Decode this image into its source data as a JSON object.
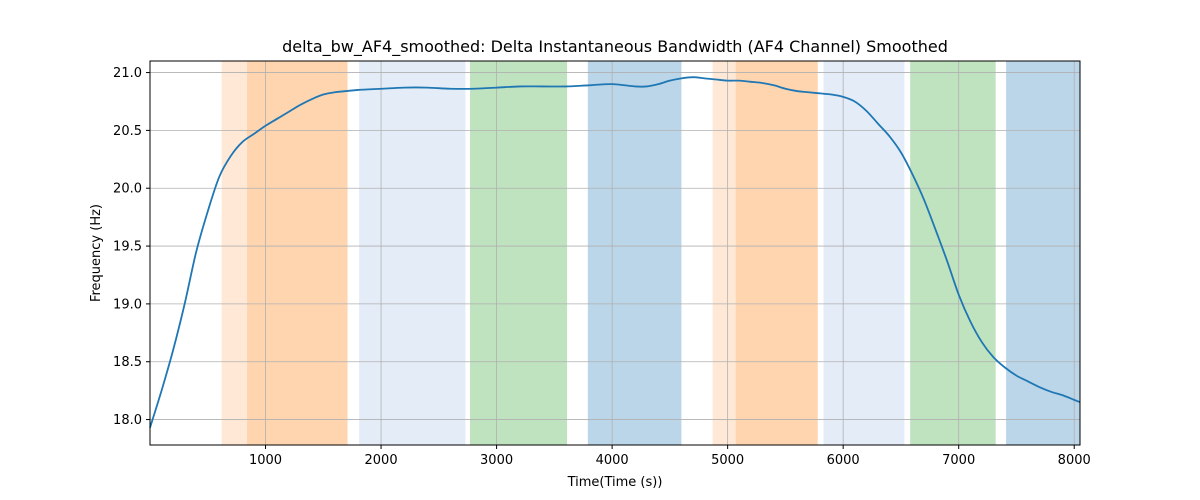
{
  "chart_data": {
    "type": "line",
    "title": "delta_bw_AF4_smoothed: Delta Instantaneous Bandwidth (AF4 Channel) Smoothed",
    "xlabel": "Time(Time (s))",
    "ylabel": "Frequency (Hz)",
    "xlim": [
      0,
      8050
    ],
    "ylim": [
      17.78,
      21.1
    ],
    "xticks": [
      1000,
      2000,
      3000,
      4000,
      5000,
      6000,
      7000,
      8000
    ],
    "yticks": [
      18.0,
      18.5,
      19.0,
      19.5,
      20.0,
      20.5,
      21.0
    ],
    "grid": true,
    "series": [
      {
        "color": "#1f77b4",
        "x": [
          0,
          100,
          200,
          300,
          400,
          500,
          600,
          700,
          800,
          900,
          1000,
          1100,
          1200,
          1300,
          1400,
          1500,
          1600,
          1700,
          1800,
          2000,
          2200,
          2400,
          2600,
          2800,
          3000,
          3200,
          3400,
          3600,
          3800,
          4000,
          4200,
          4300,
          4400,
          4500,
          4600,
          4700,
          4800,
          4900,
          5000,
          5100,
          5200,
          5300,
          5400,
          5500,
          5600,
          5700,
          5800,
          5900,
          6000,
          6100,
          6200,
          6300,
          6400,
          6500,
          6600,
          6700,
          6800,
          6900,
          7000,
          7100,
          7200,
          7300,
          7400,
          7500,
          7600,
          7700,
          7800,
          7900,
          8000,
          8050
        ],
        "y": [
          17.93,
          18.25,
          18.6,
          19.0,
          19.45,
          19.8,
          20.1,
          20.28,
          20.4,
          20.47,
          20.54,
          20.6,
          20.66,
          20.72,
          20.77,
          20.81,
          20.83,
          20.84,
          20.85,
          20.86,
          20.87,
          20.87,
          20.86,
          20.86,
          20.87,
          20.88,
          20.88,
          20.88,
          20.89,
          20.9,
          20.88,
          20.88,
          20.9,
          20.93,
          20.95,
          20.96,
          20.95,
          20.94,
          20.93,
          20.93,
          20.92,
          20.91,
          20.89,
          20.86,
          20.84,
          20.83,
          20.82,
          20.81,
          20.79,
          20.75,
          20.67,
          20.56,
          20.45,
          20.31,
          20.12,
          19.9,
          19.64,
          19.37,
          19.08,
          18.85,
          18.67,
          18.54,
          18.45,
          18.38,
          18.33,
          18.28,
          18.24,
          18.21,
          18.17,
          18.15
        ]
      }
    ],
    "bands": [
      {
        "x0": 620,
        "x1": 840,
        "color": "#ff7f0e",
        "opacity": 0.17
      },
      {
        "x0": 840,
        "x1": 1710,
        "color": "#ff7f0e",
        "opacity": 0.33
      },
      {
        "x0": 1810,
        "x1": 2730,
        "color": "#aec7e8",
        "opacity": 0.33
      },
      {
        "x0": 2770,
        "x1": 3610,
        "color": "#2ca02c",
        "opacity": 0.3
      },
      {
        "x0": 3790,
        "x1": 4600,
        "color": "#1f77b4",
        "opacity": 0.3
      },
      {
        "x0": 4870,
        "x1": 5070,
        "color": "#ff7f0e",
        "opacity": 0.17
      },
      {
        "x0": 5070,
        "x1": 5780,
        "color": "#ff7f0e",
        "opacity": 0.33
      },
      {
        "x0": 5830,
        "x1": 6530,
        "color": "#aec7e8",
        "opacity": 0.33
      },
      {
        "x0": 6580,
        "x1": 7320,
        "color": "#2ca02c",
        "opacity": 0.3
      },
      {
        "x0": 7410,
        "x1": 8050,
        "color": "#1f77b4",
        "opacity": 0.3
      }
    ]
  }
}
